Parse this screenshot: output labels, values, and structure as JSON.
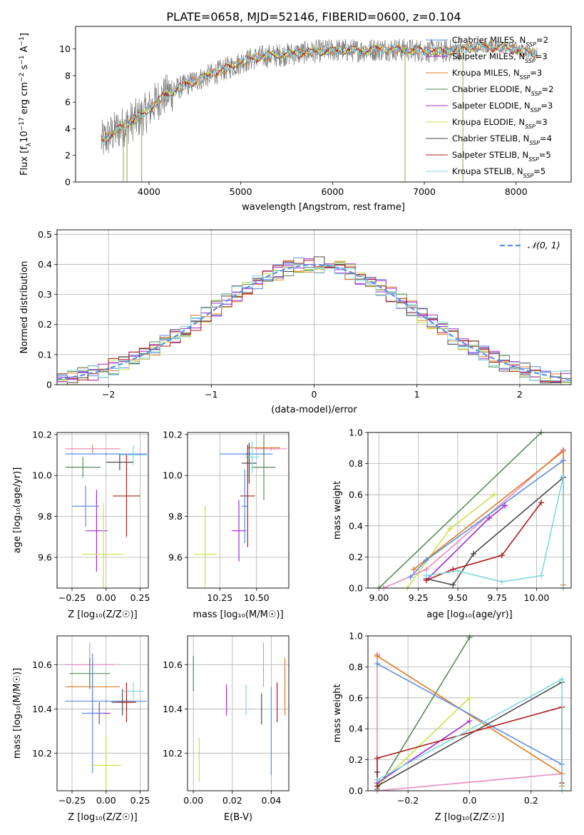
{
  "figure_title": "PLATE=0658, MJD=52146, FIBERID=0600, z=0.104",
  "colors": {
    "Chabrier MILES": "#5b8ee6",
    "Salpeter MILES": "#a22bd4",
    "Kroupa MILES": "#e07b1f",
    "Chabrier ELODIE": "#5a8a5a",
    "Salpeter ELODIE": "#a22bd4",
    "Kroupa ELODIE": "#c8e34a",
    "Chabrier STELIB": "#4a4a4a",
    "Salpeter STELIB": "#b01c1c",
    "Kroupa STELIB": "#7fd8df",
    "Pink": "#e58ac0"
  },
  "chart_data": [
    {
      "id": "spectrum",
      "type": "line",
      "xlabel": "wavelength [Angstrom, rest frame]",
      "ylabel": "Flux [f_λ 10^-17 erg cm^-2 s^-1 A^-1]",
      "xlim": [
        3200,
        8600
      ],
      "ylim": [
        0,
        11.7
      ],
      "xticks": [
        4000,
        5000,
        6000,
        7000,
        8000
      ],
      "yticks": [
        0,
        2,
        4,
        6,
        8,
        10
      ],
      "legend_position": "right",
      "legend": [
        {
          "label": "Chabrier MILES, N",
          "sub": "SSP",
          "tail": "=2",
          "color": "#5b8ee6"
        },
        {
          "label": "Salpeter MILES, N",
          "sub": "SSP",
          "tail": "=3",
          "color": "#a22bd4"
        },
        {
          "label": "Kroupa MILES, N",
          "sub": "SSP",
          "tail": "=3",
          "color": "#e07b1f"
        },
        {
          "label": "Chabrier ELODIE, N",
          "sub": "SSP",
          "tail": "=2",
          "color": "#5a8a5a"
        },
        {
          "label": "Salpeter ELODIE, N",
          "sub": "SSP",
          "tail": "=3",
          "color": "#a22bd4"
        },
        {
          "label": "Kroupa ELODIE, N",
          "sub": "SSP",
          "tail": "=3",
          "color": "#c8e34a"
        },
        {
          "label": "Chabrier STELIB, N",
          "sub": "SSP",
          "tail": "=4",
          "color": "#4a4a4a"
        },
        {
          "label": "Salpeter STELIB, N",
          "sub": "SSP",
          "tail": "=5",
          "color": "#b01c1c"
        },
        {
          "label": "Kroupa STELIB, N",
          "sub": "SSP",
          "tail": "=5",
          "color": "#7fd8df"
        }
      ],
      "continuum": [
        [
          3500,
          3.1
        ],
        [
          3650,
          3.9
        ],
        [
          3800,
          4.5
        ],
        [
          3950,
          5.1
        ],
        [
          4100,
          6.2
        ],
        [
          4300,
          7.0
        ],
        [
          4500,
          7.6
        ],
        [
          4800,
          8.4
        ],
        [
          5000,
          9.0
        ],
        [
          5200,
          9.4
        ],
        [
          5500,
          9.6
        ],
        [
          5800,
          9.8
        ],
        [
          6000,
          9.9
        ],
        [
          6300,
          9.9
        ],
        [
          6600,
          10.0
        ],
        [
          6900,
          9.9
        ],
        [
          7200,
          9.8
        ],
        [
          7400,
          10.0
        ],
        [
          7600,
          10.2
        ],
        [
          7900,
          10.1
        ],
        [
          8200,
          9.7
        ]
      ],
      "data_range": [
        3480,
        8230
      ]
    },
    {
      "id": "residuals",
      "type": "line",
      "xlabel": "(data-model)/error",
      "ylabel": "Normed distribution",
      "xlim": [
        -2.5,
        2.5
      ],
      "ylim": [
        0,
        0.515
      ],
      "xticks": [
        -2,
        -1,
        0,
        1,
        2
      ],
      "yticks": [
        0.0,
        0.1,
        0.2,
        0.3,
        0.4,
        0.5
      ],
      "xtick_labels": [
        "−2",
        "−1",
        "0",
        "1",
        "2"
      ],
      "grid": true,
      "legend_position": "top-right",
      "legend_label": "𝒩(0, 1)",
      "reference_curve": "gaussian mu=0 sigma=1",
      "bin_width": 0.1
    },
    {
      "id": "age_vs_Z",
      "type": "scatter",
      "xlabel": "Z [log₁₀(Z/Z☉)]",
      "ylabel": "age  [log₁₀(age/yr)]",
      "xlim": [
        -0.36,
        0.31
      ],
      "ylim": [
        9.45,
        10.21
      ],
      "xticks": [
        -0.25,
        0.0,
        0.25
      ],
      "xtick_labels": [
        "−0.25",
        "0.00",
        "0.25"
      ],
      "yticks": [
        9.6,
        9.8,
        10.0,
        10.2
      ],
      "ytick_labels": [
        "9.6",
        "9.8",
        "10.0",
        "10.2"
      ],
      "grid": true,
      "points": [
        {
          "x": 0.0,
          "xerr": 0.3,
          "y": 10.105,
          "yerr": 0.005,
          "color": "#5b8ee6"
        },
        {
          "x": -0.1,
          "xerr": 0.2,
          "y": 10.13,
          "yerr": 0.02,
          "color": "#e07b1f"
        },
        {
          "x": -0.1,
          "xerr": 0.2,
          "y": 10.13,
          "yerr": 0.01,
          "color": "#e58ac0"
        },
        {
          "x": -0.17,
          "xerr": 0.13,
          "y": 10.04,
          "yerr": 0.05,
          "color": "#5a8a5a"
        },
        {
          "x": 0.1,
          "xerr": 0.1,
          "y": 10.065,
          "yerr": 0.04,
          "color": "#4a4a4a"
        },
        {
          "x": 0.2,
          "xerr": 0.1,
          "y": 10.1,
          "yerr": 0.05,
          "color": "#7fd8df"
        },
        {
          "x": 0.15,
          "xerr": 0.1,
          "y": 9.9,
          "yerr": 0.2,
          "color": "#b01c1c"
        },
        {
          "x": -0.07,
          "xerr": 0.08,
          "y": 9.73,
          "yerr": 0.2,
          "color": "#a22bd4"
        },
        {
          "x": -0.15,
          "xerr": 0.1,
          "y": 9.85,
          "yerr": 0.1,
          "color": "#5b8ee6"
        },
        {
          "x": -0.02,
          "xerr": 0.15,
          "y": 9.615,
          "yerr": 0.25,
          "color": "#c8e34a"
        }
      ]
    },
    {
      "id": "age_vs_mass",
      "type": "scatter",
      "xlabel": "mass [log₁₀(M/M☉)]",
      "xlim": [
        10.03,
        10.72
      ],
      "ylim": [
        9.45,
        10.21
      ],
      "xticks": [
        10.25,
        10.5
      ],
      "xtick_labels": [
        "10.25",
        "10.50"
      ],
      "yticks": [
        9.6,
        9.8,
        10.0,
        10.2
      ],
      "ytick_labels": [
        "9.6",
        "9.8",
        "10.0",
        "10.2"
      ],
      "grid": true,
      "points": [
        {
          "x": 10.43,
          "xerr": 0.18,
          "y": 10.105,
          "yerr": 0.005,
          "color": "#5b8ee6"
        },
        {
          "x": 10.55,
          "xerr": 0.11,
          "y": 10.135,
          "yerr": 0.03,
          "color": "#e07b1f"
        },
        {
          "x": 10.6,
          "xerr": 0.11,
          "y": 10.13,
          "yerr": 0.01,
          "color": "#e58ac0"
        },
        {
          "x": 10.55,
          "xerr": 0.08,
          "y": 10.04,
          "yerr": 0.16,
          "color": "#5a8a5a"
        },
        {
          "x": 10.45,
          "xerr": 0.05,
          "y": 10.06,
          "yerr": 0.1,
          "color": "#4a4a4a"
        },
        {
          "x": 10.47,
          "xerr": 0.05,
          "y": 10.09,
          "yerr": 0.08,
          "color": "#7fd8df"
        },
        {
          "x": 10.44,
          "xerr": 0.05,
          "y": 9.9,
          "yerr": 0.25,
          "color": "#b01c1c"
        },
        {
          "x": 10.38,
          "xerr": 0.05,
          "y": 9.73,
          "yerr": 0.15,
          "color": "#a22bd4"
        },
        {
          "x": 10.42,
          "xerr": 0.02,
          "y": 9.85,
          "yerr": 0.18,
          "color": "#5b8ee6"
        },
        {
          "x": 10.15,
          "xerr": 0.08,
          "y": 9.615,
          "yerr": 0.24,
          "color": "#c8e34a"
        }
      ]
    },
    {
      "id": "mw_vs_age",
      "type": "line",
      "xlabel": "age  [log₁₀(age/yr)]",
      "ylabel": "mass weight",
      "xlim": [
        8.93,
        10.22
      ],
      "ylim": [
        0,
        1
      ],
      "xticks": [
        9.0,
        9.25,
        9.5,
        9.75,
        10.0
      ],
      "xtick_labels": [
        "9.00",
        "9.25",
        "9.50",
        "9.75",
        "10.00"
      ],
      "yticks": [
        0.0,
        0.2,
        0.4,
        0.6,
        0.8,
        1.0
      ],
      "ytick_labels": [
        "0.0",
        "0.2",
        "0.4",
        "0.6",
        "0.8",
        "1.0"
      ],
      "grid": true,
      "series": [
        {
          "color": "#5a8a5a",
          "x": [
            9.0,
            10.03
          ],
          "y": [
            0.0,
            1.0
          ]
        },
        {
          "color": "#c8e34a",
          "x": [
            9.18,
            9.45,
            9.73
          ],
          "y": [
            0.0,
            0.38,
            0.6
          ]
        },
        {
          "color": "#e58ac0",
          "x": [
            9.03,
            9.3,
            10.17,
            10.17
          ],
          "y": [
            0.0,
            0.12,
            0.89,
            0.0
          ]
        },
        {
          "color": "#e07b1f",
          "x": [
            9.22,
            10.17,
            10.17
          ],
          "y": [
            0.12,
            0.88,
            0.02
          ]
        },
        {
          "color": "#5b8ee6",
          "x": [
            9.2,
            9.3,
            10.17
          ],
          "y": [
            0.07,
            0.18,
            0.82
          ]
        },
        {
          "color": "#a22bd4",
          "x": [
            9.3,
            9.7,
            9.8
          ],
          "y": [
            0.05,
            0.45,
            0.53
          ]
        },
        {
          "color": "#4a4a4a",
          "x": [
            9.3,
            9.47,
            9.6,
            10.17
          ],
          "y": [
            0.06,
            0.02,
            0.22,
            0.71
          ]
        },
        {
          "color": "#b01c1c",
          "x": [
            9.3,
            9.47,
            9.78,
            10.03
          ],
          "y": [
            0.05,
            0.12,
            0.21,
            0.55
          ]
        },
        {
          "color": "#7fd8df",
          "x": [
            9.3,
            9.5,
            9.78,
            10.03,
            10.17,
            10.17
          ],
          "y": [
            0.08,
            0.11,
            0.04,
            0.08,
            0.72,
            0.0
          ]
        }
      ]
    },
    {
      "id": "mass_vs_Z",
      "type": "scatter",
      "xlabel": "Z [log₁₀(Z/Z☉)]",
      "ylabel": "mass [log₁₀(M/M☉)]",
      "xlim": [
        -0.36,
        0.31
      ],
      "ylim": [
        10.03,
        10.73
      ],
      "xticks": [
        -0.25,
        0.0,
        0.25
      ],
      "xtick_labels": [
        "−0.25",
        "0.00",
        "0.25"
      ],
      "yticks": [
        10.2,
        10.4,
        10.6
      ],
      "ytick_labels": [
        "10.2",
        "10.4",
        "10.6"
      ],
      "grid": true,
      "points": [
        {
          "x": -0.12,
          "xerr": 0.18,
          "y": 10.6,
          "yerr": 0.1,
          "color": "#e58ac0"
        },
        {
          "x": -0.1,
          "xerr": 0.2,
          "y": 10.5,
          "yerr": 0.12,
          "color": "#e07b1f"
        },
        {
          "x": -0.12,
          "xerr": 0.15,
          "y": 10.56,
          "yerr": 0.07,
          "color": "#5a8a5a"
        },
        {
          "x": 0.0,
          "xerr": 0.3,
          "y": 10.435,
          "yerr": 0.005,
          "color": "#5b8ee6"
        },
        {
          "x": -0.05,
          "xerr": 0.08,
          "y": 10.38,
          "yerr": 0.05,
          "color": "#a22bd4"
        },
        {
          "x": 0.12,
          "xerr": 0.08,
          "y": 10.43,
          "yerr": 0.06,
          "color": "#4a4a4a"
        },
        {
          "x": 0.2,
          "xerr": 0.08,
          "y": 10.48,
          "yerr": 0.04,
          "color": "#7fd8df"
        },
        {
          "x": 0.15,
          "xerr": 0.07,
          "y": 10.43,
          "yerr": 0.09,
          "color": "#b01c1c"
        },
        {
          "x": -0.1,
          "xerr": 0.08,
          "y": 10.38,
          "yerr": 0.27,
          "color": "#5b8ee6"
        },
        {
          "x": 0.0,
          "xerr": 0.11,
          "y": 10.145,
          "yerr": 0.13,
          "color": "#c8e34a"
        }
      ]
    },
    {
      "id": "mass_vs_ebv",
      "type": "scatter",
      "xlabel": "E(B-V)",
      "xlim": [
        -0.003,
        0.049
      ],
      "ylim": [
        10.03,
        10.73
      ],
      "xticks": [
        0.0,
        0.02,
        0.04
      ],
      "xtick_labels": [
        "0.00",
        "0.02",
        "0.04"
      ],
      "yticks": [
        10.2,
        10.4,
        10.6
      ],
      "ytick_labels": [
        "10.2",
        "10.4",
        "10.6"
      ],
      "grid": true,
      "points": [
        {
          "x": 0.0,
          "y": 10.56,
          "yerr": 0.08,
          "color": "#5a8a5a"
        },
        {
          "x": 0.003,
          "y": 10.17,
          "yerr": 0.1,
          "color": "#c8e34a"
        },
        {
          "x": 0.017,
          "y": 10.44,
          "yerr": 0.07,
          "color": "#a22bd4"
        },
        {
          "x": 0.027,
          "y": 10.44,
          "yerr": 0.07,
          "color": "#7fd8df"
        },
        {
          "x": 0.035,
          "y": 10.4,
          "yerr": 0.07,
          "color": "#4a4a4a"
        },
        {
          "x": 0.036,
          "y": 10.6,
          "yerr": 0.1,
          "color": "#e58ac0"
        },
        {
          "x": 0.04,
          "y": 10.3,
          "yerr": 0.2,
          "color": "#5b8ee6"
        },
        {
          "x": 0.043,
          "y": 10.43,
          "yerr": 0.09,
          "color": "#b01c1c"
        },
        {
          "x": 0.047,
          "y": 10.5,
          "yerr": 0.13,
          "color": "#e07b1f"
        }
      ]
    },
    {
      "id": "mw_vs_Z",
      "type": "line",
      "xlabel": "Z [log₁₀(Z/Z☉)]",
      "ylabel": "mass weight",
      "xlim": [
        -0.33,
        0.33
      ],
      "ylim": [
        0,
        1
      ],
      "xticks": [
        -0.2,
        0.0,
        0.2
      ],
      "xtick_labels": [
        "−0.2",
        "0.0",
        "0.2"
      ],
      "yticks": [
        0.0,
        0.2,
        0.4,
        0.6,
        0.8,
        1.0
      ],
      "ytick_labels": [
        "0.0",
        "0.2",
        "0.4",
        "0.6",
        "0.8",
        "1.0"
      ],
      "grid": true,
      "series": [
        {
          "color": "#5a8a5a",
          "x": [
            -0.3,
            0.0
          ],
          "y": [
            0.01,
            0.99
          ]
        },
        {
          "color": "#c8e34a",
          "x": [
            -0.3,
            0.0,
            0.0
          ],
          "y": [
            0.03,
            0.6,
            0.4
          ]
        },
        {
          "color": "#e58ac0",
          "x": [
            -0.3,
            -0.3,
            0.3
          ],
          "y": [
            0.88,
            0.0,
            0.11
          ]
        },
        {
          "color": "#e07b1f",
          "x": [
            -0.3,
            0.3,
            0.3
          ],
          "y": [
            0.87,
            0.11,
            0.03
          ]
        },
        {
          "color": "#5b8ee6",
          "x": [
            -0.3,
            0.3
          ],
          "y": [
            0.82,
            0.17
          ]
        },
        {
          "color": "#a22bd4",
          "x": [
            -0.3,
            0.0
          ],
          "y": [
            0.05,
            0.45
          ]
        },
        {
          "color": "#4a4a4a",
          "x": [
            -0.3,
            -0.3,
            0.3
          ],
          "y": [
            0.12,
            0.03,
            0.7
          ]
        },
        {
          "color": "#b01c1c",
          "x": [
            -0.3,
            -0.3,
            0.3,
            0.3
          ],
          "y": [
            0.03,
            0.21,
            0.54,
            0.05
          ]
        },
        {
          "color": "#7fd8df",
          "x": [
            -0.3,
            0.3,
            0.3
          ],
          "y": [
            0.07,
            0.72,
            0.0
          ]
        }
      ]
    }
  ]
}
